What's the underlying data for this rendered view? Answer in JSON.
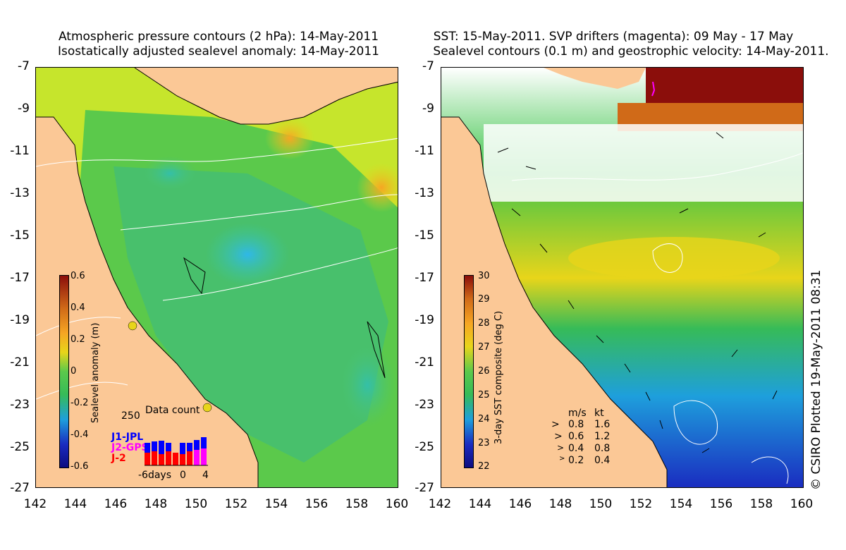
{
  "left_panel": {
    "title_line1": "Atmospheric pressure contours (2 hPa): 14-May-2011",
    "title_line2": "Isostatically adjusted sealevel anomaly: 14-May-2011",
    "colorbar": {
      "label": "Sealevel anomaly (m)",
      "ticks": [
        "0.6",
        "0.4",
        "0.2",
        "0",
        "-0.2",
        "-0.4",
        "-0.6"
      ],
      "range": [
        -0.6,
        0.6
      ]
    },
    "data_count": {
      "title": "Data count",
      "max_label": "250",
      "series": [
        "J1-JPL",
        "J2-GPS",
        "J-2"
      ],
      "series_colors": [
        "#0000ff",
        "#ff00ff",
        "#ff0000"
      ],
      "x_labels": [
        "-6days",
        "0",
        "4"
      ]
    }
  },
  "right_panel": {
    "title_line1": "SST: 15-May-2011. SVP drifters (magenta): 09 May - 17 May",
    "title_line2": "Sealevel contours (0.1 m) and geostrophic velocity: 14-May-2011.",
    "colorbar": {
      "label": "3-day SST composite (deg C)",
      "ticks": [
        "30",
        "29",
        "28",
        "27",
        "26",
        "25",
        "24",
        "23",
        "22"
      ],
      "range": [
        22,
        30
      ]
    },
    "velocity_legend": {
      "header_ms": "m/s",
      "header_kt": "kt",
      "rows": [
        {
          "ms": "0.8",
          "kt": "1.6"
        },
        {
          "ms": "0.6",
          "kt": "1.2"
        },
        {
          "ms": "0.4",
          "kt": "0.8"
        },
        {
          "ms": "0.2",
          "kt": "0.4"
        }
      ]
    }
  },
  "axes": {
    "y_ticks": [
      "-7",
      "-9",
      "-11",
      "-13",
      "-15",
      "-17",
      "-19",
      "-21",
      "-23",
      "-25",
      "-27"
    ],
    "x_ticks": [
      "142",
      "144",
      "146",
      "148",
      "150",
      "152",
      "154",
      "156",
      "158",
      "160"
    ],
    "lat_range": [
      -27,
      -7
    ],
    "lon_range": [
      142,
      160
    ]
  },
  "credit": "© CSIRO Plotted 19-May-2011 08:31",
  "colors": {
    "land": "#fbc896",
    "cloud": "#ffffff"
  }
}
